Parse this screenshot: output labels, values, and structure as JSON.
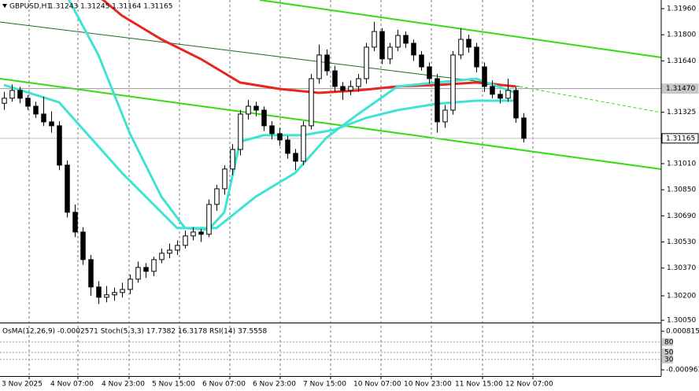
{
  "chart_data": [
    {
      "type": "candlestick",
      "title": "GBPUSD,H1",
      "subtitle": "1.31243 1.31245 1.31164 1.31165",
      "up_color": "#ffffff",
      "down_color": "#000000",
      "grid": true,
      "xlim": [
        -0.5,
        83.5
      ],
      "xticks": [
        {
          "value": -0.5,
          "label": "3 Nov 2025"
        },
        {
          "value": 5.7,
          "label": "4 Nov 07:00"
        },
        {
          "value": 12.2,
          "label": "4 Nov 23:00"
        },
        {
          "value": 18.6,
          "label": "5 Nov 15:00"
        },
        {
          "value": 25,
          "label": "6 Nov 07:00"
        },
        {
          "value": 31.4,
          "label": "6 Nov 23:00"
        },
        {
          "value": 37.8,
          "label": "7 Nov 15:00"
        },
        {
          "value": 44.2,
          "label": "10 Nov 07:00"
        },
        {
          "value": 50.6,
          "label": "10 Nov 23:00"
        },
        {
          "value": 57.1,
          "label": "11 Nov 15:00"
        },
        {
          "value": 63.5,
          "label": "12 Nov 07:00"
        }
      ],
      "ylim": [
        1.30036,
        1.32013
      ],
      "yticks": [
        {
          "value": 1.3196,
          "label": "1.31960"
        },
        {
          "value": 1.318,
          "label": "1.31800"
        },
        {
          "value": 1.3164,
          "label": "1.31640"
        },
        {
          "value": 1.31325,
          "label": "1.31325"
        },
        {
          "value": 1.3101,
          "label": "1.31010"
        },
        {
          "value": 1.3085,
          "label": "1.30850"
        },
        {
          "value": 1.3069,
          "label": "1.30690"
        },
        {
          "value": 1.3053,
          "label": "1.30530"
        },
        {
          "value": 1.3037,
          "label": "1.30370"
        },
        {
          "value": 1.302,
          "label": "1.30200"
        },
        {
          "value": 1.3005,
          "label": "1.30050"
        }
      ],
      "price_lines": [
        {
          "value": 1.3147,
          "label": "1.31470"
        },
        {
          "value": 1.31165,
          "label": "1.31165"
        }
      ],
      "candles": [
        [
          1.3138,
          1.3145,
          1.3134,
          1.31411
        ],
        [
          1.31411,
          1.31495,
          1.3139,
          1.31459
        ],
        [
          1.31459,
          1.3148,
          1.3138,
          1.31411
        ],
        [
          1.31411,
          1.3143,
          1.3134,
          1.31362
        ],
        [
          1.31362,
          1.3139,
          1.3129,
          1.31314
        ],
        [
          1.31314,
          1.3142,
          1.3124,
          1.31266
        ],
        [
          1.31266,
          1.3133,
          1.312,
          1.31242
        ],
        [
          1.31242,
          1.3127,
          1.3097,
          1.31001
        ],
        [
          1.31001,
          1.3103,
          1.3068,
          1.30712
        ],
        [
          1.30712,
          1.3076,
          1.3056,
          1.30591
        ],
        [
          1.30591,
          1.3062,
          1.3039,
          1.30422
        ],
        [
          1.30422,
          1.3045,
          1.302,
          1.30254
        ],
        [
          1.30254,
          1.3029,
          1.3015,
          1.30191
        ],
        [
          1.30191,
          1.3026,
          1.3016,
          1.30206
        ],
        [
          1.30206,
          1.3025,
          1.3017,
          1.3022
        ],
        [
          1.3022,
          1.3028,
          1.3019,
          1.30239
        ],
        [
          1.30239,
          1.3033,
          1.3021,
          1.30302
        ],
        [
          1.30302,
          1.3041,
          1.3028,
          1.30374
        ],
        [
          1.30374,
          1.304,
          1.3031,
          1.3035
        ],
        [
          1.3035,
          1.3044,
          1.3032,
          1.30422
        ],
        [
          1.30422,
          1.3049,
          1.304,
          1.30461
        ],
        [
          1.30461,
          1.3052,
          1.3043,
          1.3048
        ],
        [
          1.3048,
          1.3054,
          1.3045,
          1.30509
        ],
        [
          1.30509,
          1.306,
          1.3049,
          1.30567
        ],
        [
          1.30567,
          1.3062,
          1.3054,
          1.30591
        ],
        [
          1.30591,
          1.3061,
          1.3053,
          1.30577
        ],
        [
          1.30577,
          1.3079,
          1.3056,
          1.3076
        ],
        [
          1.3076,
          1.3088,
          1.3072,
          1.30856
        ],
        [
          1.30856,
          1.31,
          1.3082,
          1.30977
        ],
        [
          1.30977,
          1.3113,
          1.3094,
          1.31097
        ],
        [
          1.31097,
          1.3134,
          1.3106,
          1.31314
        ],
        [
          1.31314,
          1.314,
          1.3128,
          1.31362
        ],
        [
          1.31362,
          1.3139,
          1.313,
          1.31338
        ],
        [
          1.31338,
          1.3136,
          1.3121,
          1.31242
        ],
        [
          1.31242,
          1.3127,
          1.3116,
          1.31194
        ],
        [
          1.31194,
          1.3123,
          1.3112,
          1.31155
        ],
        [
          1.31155,
          1.3118,
          1.3104,
          1.31073
        ],
        [
          1.31073,
          1.311,
          1.3097,
          1.31025
        ],
        [
          1.31025,
          1.3127,
          1.31,
          1.31242
        ],
        [
          1.31242,
          1.3156,
          1.3122,
          1.31531
        ],
        [
          1.31531,
          1.3174,
          1.315,
          1.31676
        ],
        [
          1.31676,
          1.3171,
          1.3155,
          1.31579
        ],
        [
          1.31579,
          1.3161,
          1.3145,
          1.31483
        ],
        [
          1.31483,
          1.3151,
          1.314,
          1.31459
        ],
        [
          1.31459,
          1.3152,
          1.3143,
          1.31483
        ],
        [
          1.31483,
          1.3156,
          1.3145,
          1.31531
        ],
        [
          1.31531,
          1.3175,
          1.315,
          1.31724
        ],
        [
          1.31724,
          1.3188,
          1.317,
          1.3182
        ],
        [
          1.3182,
          1.3184,
          1.3162,
          1.31652
        ],
        [
          1.31652,
          1.3175,
          1.3162,
          1.31724
        ],
        [
          1.31724,
          1.3183,
          1.317,
          1.31796
        ],
        [
          1.31796,
          1.3182,
          1.3172,
          1.31748
        ],
        [
          1.31748,
          1.3177,
          1.3164,
          1.31676
        ],
        [
          1.31676,
          1.317,
          1.3158,
          1.31603
        ],
        [
          1.31603,
          1.3163,
          1.315,
          1.31531
        ],
        [
          1.31531,
          1.3156,
          1.312,
          1.31266
        ],
        [
          1.31266,
          1.3137,
          1.3123,
          1.31338
        ],
        [
          1.31338,
          1.317,
          1.3131,
          1.31676
        ],
        [
          1.31676,
          1.3184,
          1.3165,
          1.31772
        ],
        [
          1.31772,
          1.318,
          1.3169,
          1.31724
        ],
        [
          1.31724,
          1.3175,
          1.3157,
          1.31603
        ],
        [
          1.31603,
          1.3163,
          1.3145,
          1.31483
        ],
        [
          1.31483,
          1.3152,
          1.3141,
          1.31435
        ],
        [
          1.31435,
          1.3146,
          1.3138,
          1.31411
        ],
        [
          1.31411,
          1.3153,
          1.3139,
          1.31459
        ],
        [
          1.31459,
          1.3148,
          1.3126,
          1.3129
        ],
        [
          1.3129,
          1.3132,
          1.3114,
          1.31165
        ]
      ],
      "series": [
        {
          "color": "#e8261f",
          "x": [
            12,
            15,
            20,
            25,
            30,
            35,
            40,
            45,
            50,
            55,
            60,
            65
          ],
          "values": [
            1.32037,
            1.31917,
            1.31772,
            1.31652,
            1.31507,
            1.31468,
            1.31444,
            1.31459,
            1.31483,
            1.31492,
            1.31507,
            1.31483
          ]
        },
        {
          "color": "#3fe3d4",
          "x": [
            8,
            12,
            16,
            20,
            23,
            26,
            28,
            30,
            33,
            38,
            42,
            46,
            50,
            55,
            60,
            65
          ],
          "values": [
            1.32037,
            1.31676,
            1.31194,
            1.30808,
            1.30615,
            1.30606,
            1.30712,
            1.31145,
            1.31184,
            1.31184,
            1.31218,
            1.3129,
            1.31338,
            1.31377,
            1.31396,
            1.31396
          ]
        },
        {
          "color": "#3fe3d4",
          "x": [
            0,
            7,
            15,
            22,
            27,
            32,
            37,
            41,
            45,
            50,
            55,
            60,
            65
          ],
          "values": [
            1.31492,
            1.31386,
            1.30953,
            1.30615,
            1.30615,
            1.30808,
            1.30953,
            1.3117,
            1.31314,
            1.31483,
            1.31507,
            1.31531,
            1.31444
          ]
        }
      ]
    },
    {
      "type": "indicator",
      "title": "OsMA(12,26,9) -0.0002571  Stoch(5,3,3) 17.7382 16.3178  RSI(14) 37.5558",
      "ylim": [
        -18,
        134
      ],
      "yticks": [
        80,
        50,
        30
      ],
      "y2lim": [
        -0.00125,
        0.00118
      ],
      "y2ticks": [
        {
          "value": 0.000815,
          "label": "0.000815"
        },
        {
          "value": -0.000963,
          "label": "-0.000963"
        }
      ]
    }
  ]
}
